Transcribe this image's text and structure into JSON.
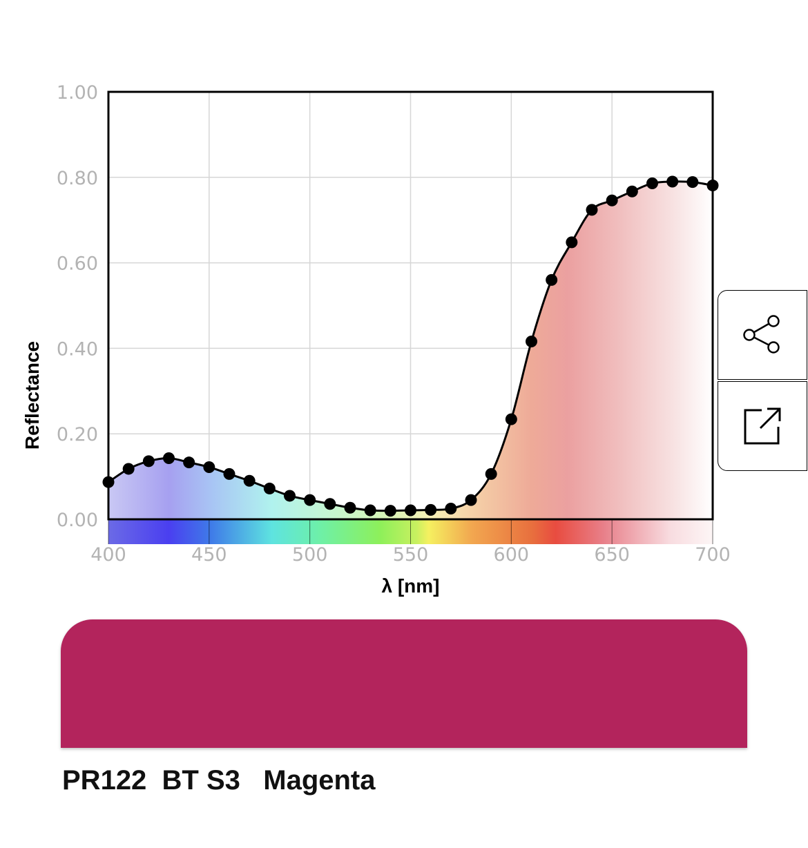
{
  "chart_data": {
    "type": "line",
    "xlabel": "λ [nm]",
    "ylabel": "Reflectance",
    "xlim": [
      400,
      700
    ],
    "ylim": [
      0,
      1
    ],
    "x_ticks": [
      "400",
      "450",
      "500",
      "550",
      "600",
      "650",
      "700"
    ],
    "y_ticks": [
      "0.00",
      "0.20",
      "0.40",
      "0.60",
      "0.80",
      "1.00"
    ],
    "grid": true,
    "x": [
      400,
      410,
      420,
      430,
      440,
      450,
      460,
      470,
      480,
      490,
      500,
      510,
      520,
      530,
      540,
      550,
      560,
      570,
      580,
      590,
      600,
      610,
      620,
      630,
      640,
      650,
      660,
      670,
      680,
      690,
      700
    ],
    "y": [
      0.087,
      0.118,
      0.136,
      0.143,
      0.133,
      0.122,
      0.106,
      0.09,
      0.072,
      0.055,
      0.045,
      0.036,
      0.027,
      0.021,
      0.02,
      0.021,
      0.022,
      0.025,
      0.045,
      0.106,
      0.234,
      0.416,
      0.56,
      0.648,
      0.724,
      0.746,
      0.767,
      0.786,
      0.79,
      0.789,
      0.781
    ]
  },
  "colors": {
    "swatch": "#b3245c",
    "line": "#000000",
    "points": "#000000"
  },
  "actions": {
    "share_icon": "share-icon",
    "open_icon": "open-external-icon"
  },
  "caption": {
    "pigment_code": "PR122",
    "series": "BT S3",
    "name": "Magenta"
  }
}
